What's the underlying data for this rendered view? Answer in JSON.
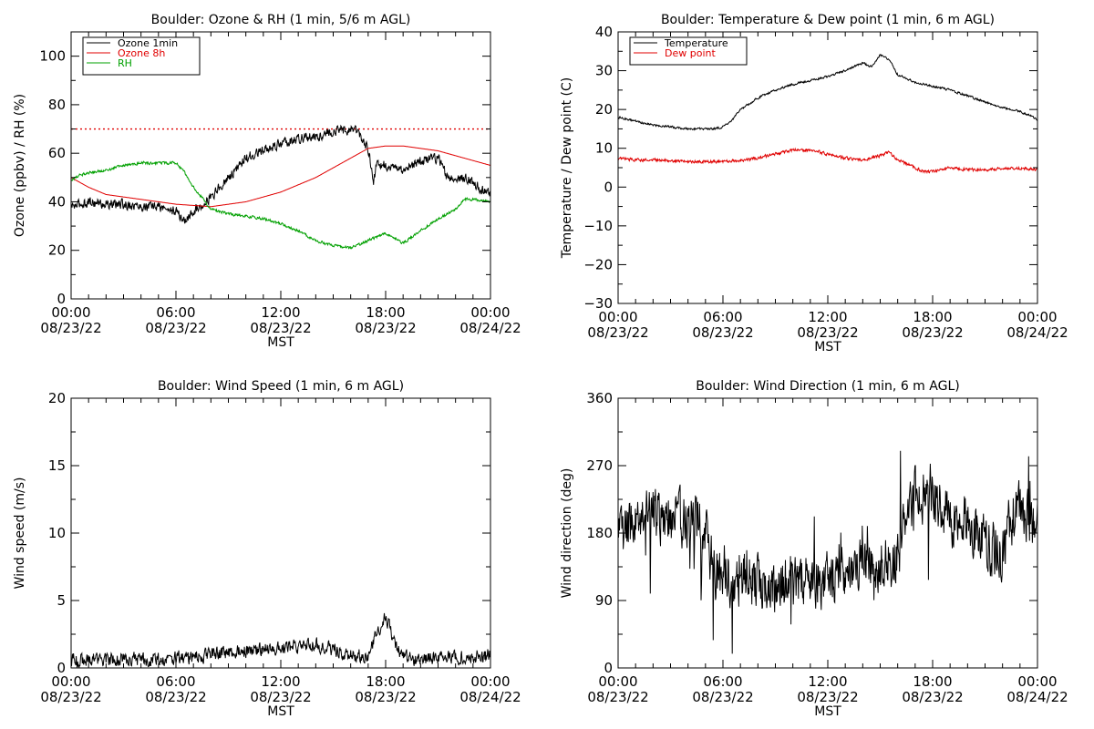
{
  "colors": {
    "black": "#000000",
    "red": "#e00000",
    "green": "#00a000",
    "bg": "#ffffff"
  },
  "chart_data": [
    {
      "id": "ozone",
      "type": "line",
      "title": "Boulder: Ozone & RH (1 min, 5/6 m AGL)",
      "xlabel": "MST",
      "ylabel": "Ozone (ppbv) / RH (%)",
      "xlim": [
        0,
        24
      ],
      "ylim": [
        0,
        110
      ],
      "yticks": [
        0,
        20,
        40,
        60,
        80,
        100
      ],
      "ytick_labels": [
        "0",
        "20",
        "40",
        "60",
        "80",
        "100"
      ],
      "xtick_times": [
        "00:00",
        "06:00",
        "12:00",
        "18:00",
        "00:00"
      ],
      "xtick_dates": [
        "08/23/22",
        "08/23/22",
        "08/23/22",
        "08/23/22",
        "08/24/22"
      ],
      "legend_position": "top-left",
      "reference_line": {
        "y": 70,
        "color": "#e00000",
        "style": "dotted"
      },
      "series": [
        {
          "name": "Ozone 1min",
          "color": "#000000",
          "noise": 1.8,
          "x": [
            0,
            1,
            2,
            3,
            4,
            5,
            6,
            6.5,
            7,
            7.5,
            8,
            9,
            10,
            11,
            12,
            13,
            14,
            15,
            16,
            16.5,
            17,
            17.3,
            17.5,
            18,
            19,
            20,
            21,
            21.5,
            22,
            22.5,
            23,
            23.5,
            24
          ],
          "y": [
            38,
            40,
            39,
            39,
            38,
            38,
            36,
            32,
            36,
            39,
            42,
            50,
            58,
            61,
            64,
            66,
            67,
            69,
            70,
            68,
            62,
            48,
            56,
            55,
            53,
            57,
            58,
            51,
            49,
            50,
            48,
            45,
            43
          ]
        },
        {
          "name": "Ozone 8h",
          "color": "#e00000",
          "noise": 0,
          "x": [
            0,
            1,
            2,
            3,
            4,
            5,
            6,
            7,
            8,
            9,
            10,
            11,
            12,
            13,
            14,
            15,
            16,
            17,
            18,
            19,
            20,
            21,
            22,
            23,
            24
          ],
          "y": [
            50,
            46,
            43,
            42,
            41,
            40,
            39,
            38.5,
            38,
            39,
            40,
            42,
            44,
            47,
            50,
            54,
            58,
            62,
            63,
            63,
            62,
            61,
            59,
            57,
            55
          ]
        },
        {
          "name": "RH",
          "color": "#00a000",
          "noise": 0.5,
          "x": [
            0,
            0.5,
            1,
            2,
            3,
            4,
            5,
            6,
            6.5,
            7,
            8,
            9,
            10,
            11,
            12,
            13,
            14,
            15,
            16,
            17,
            18,
            19,
            20,
            21,
            22,
            22.5,
            23,
            24
          ],
          "y": [
            49,
            51,
            52,
            53,
            55,
            56,
            56,
            56,
            52,
            46,
            37,
            35,
            34,
            33,
            31,
            28,
            24,
            22,
            21,
            24,
            27,
            23,
            28,
            33,
            37,
            41,
            41,
            40
          ]
        }
      ]
    },
    {
      "id": "temp",
      "type": "line",
      "title": "Boulder: Temperature & Dew point (1 min, 6 m AGL)",
      "xlabel": "MST",
      "ylabel": "Temperature / Dew point (C)",
      "xlim": [
        0,
        24
      ],
      "ylim": [
        -30,
        40
      ],
      "yticks": [
        -30,
        -20,
        -10,
        0,
        10,
        20,
        30,
        40
      ],
      "ytick_labels": [
        "−30",
        "−20",
        "−10",
        "0",
        "10",
        "20",
        "30",
        "40"
      ],
      "xtick_times": [
        "00:00",
        "06:00",
        "12:00",
        "18:00",
        "00:00"
      ],
      "xtick_dates": [
        "08/23/22",
        "08/23/22",
        "08/23/22",
        "08/23/22",
        "08/24/22"
      ],
      "legend_position": "top-left",
      "series": [
        {
          "name": "Temperature",
          "color": "#000000",
          "noise": 0.25,
          "x": [
            0,
            1,
            2,
            3,
            4,
            5,
            5.5,
            6,
            6.5,
            7,
            8,
            9,
            10,
            11,
            12,
            13,
            14,
            14.5,
            15,
            15.5,
            16,
            17,
            18,
            19,
            20,
            21,
            22,
            23,
            24
          ],
          "y": [
            18,
            17,
            16,
            15.5,
            15,
            15,
            15,
            15.5,
            17,
            20,
            23,
            25,
            26.5,
            27.5,
            28.5,
            30,
            32,
            31,
            34,
            33,
            29,
            27,
            26,
            25,
            23.5,
            22,
            20.5,
            19.5,
            17.5
          ]
        },
        {
          "name": "Dew point",
          "color": "#e00000",
          "noise": 0.35,
          "x": [
            0,
            1,
            2,
            3,
            4,
            5,
            6,
            7,
            8,
            9,
            10,
            11,
            12,
            13,
            14,
            15,
            15.5,
            16,
            17,
            17.5,
            18,
            19,
            20,
            21,
            22,
            23,
            24
          ],
          "y": [
            7.5,
            7,
            7,
            6.8,
            6.5,
            6.5,
            6.5,
            6.8,
            7.5,
            8.5,
            9.5,
            9.5,
            8.5,
            7.5,
            7,
            8,
            9,
            7,
            5,
            4,
            4,
            5,
            4.5,
            4.5,
            4.8,
            4.8,
            4.5
          ]
        }
      ]
    },
    {
      "id": "wspd",
      "type": "line",
      "title": "Boulder: Wind Speed (1 min, 6 m AGL)",
      "xlabel": "MST",
      "ylabel": "Wind speed (m/s)",
      "xlim": [
        0,
        24
      ],
      "ylim": [
        0,
        20
      ],
      "yticks": [
        0,
        5,
        10,
        15,
        20
      ],
      "ytick_labels": [
        "0",
        "5",
        "10",
        "15",
        "20"
      ],
      "xtick_times": [
        "00:00",
        "06:00",
        "12:00",
        "18:00",
        "00:00"
      ],
      "xtick_dates": [
        "08/23/22",
        "08/23/22",
        "08/23/22",
        "08/23/22",
        "08/24/22"
      ],
      "series": [
        {
          "color": "#000000",
          "noise": 0.45,
          "floor": 0,
          "x": [
            0,
            2,
            4,
            6,
            7,
            8,
            10,
            12,
            14,
            15,
            16,
            17,
            17.5,
            18,
            18.5,
            19,
            20,
            21,
            22,
            23,
            24
          ],
          "y": [
            0.6,
            0.6,
            0.6,
            0.7,
            0.8,
            1.0,
            1.3,
            1.5,
            1.7,
            1.4,
            1.0,
            0.8,
            2.5,
            3.8,
            2.0,
            0.8,
            0.6,
            0.8,
            0.8,
            0.8,
            1.0
          ]
        }
      ]
    },
    {
      "id": "wdir",
      "type": "line",
      "title": "Boulder: Wind Direction (1 min, 6 m AGL)",
      "xlabel": "MST",
      "ylabel": "Wind direction (deg)",
      "xlim": [
        0,
        24
      ],
      "ylim": [
        0,
        360
      ],
      "yticks": [
        0,
        90,
        180,
        270,
        360
      ],
      "ytick_labels": [
        "0",
        "90",
        "180",
        "270",
        "360"
      ],
      "xtick_times": [
        "00:00",
        "06:00",
        "12:00",
        "18:00",
        "00:00"
      ],
      "xtick_dates": [
        "08/23/22",
        "08/23/22",
        "08/23/22",
        "08/23/22",
        "08/24/22"
      ],
      "series": [
        {
          "color": "#000000",
          "noise": 32,
          "floor": 0,
          "ceil": 360,
          "spikes": true,
          "x": [
            0,
            0.5,
            1,
            2,
            3,
            4,
            5,
            5.5,
            6,
            7,
            8,
            9,
            10,
            11,
            12,
            13,
            14,
            15,
            16,
            16.5,
            17,
            18,
            19,
            20,
            21,
            22,
            22.5,
            23,
            24
          ],
          "y": [
            170,
            190,
            200,
            205,
            200,
            200,
            190,
            120,
            125,
            115,
            110,
            110,
            115,
            115,
            120,
            130,
            135,
            140,
            145,
            200,
            230,
            235,
            200,
            195,
            170,
            150,
            200,
            210,
            195
          ]
        }
      ]
    }
  ]
}
